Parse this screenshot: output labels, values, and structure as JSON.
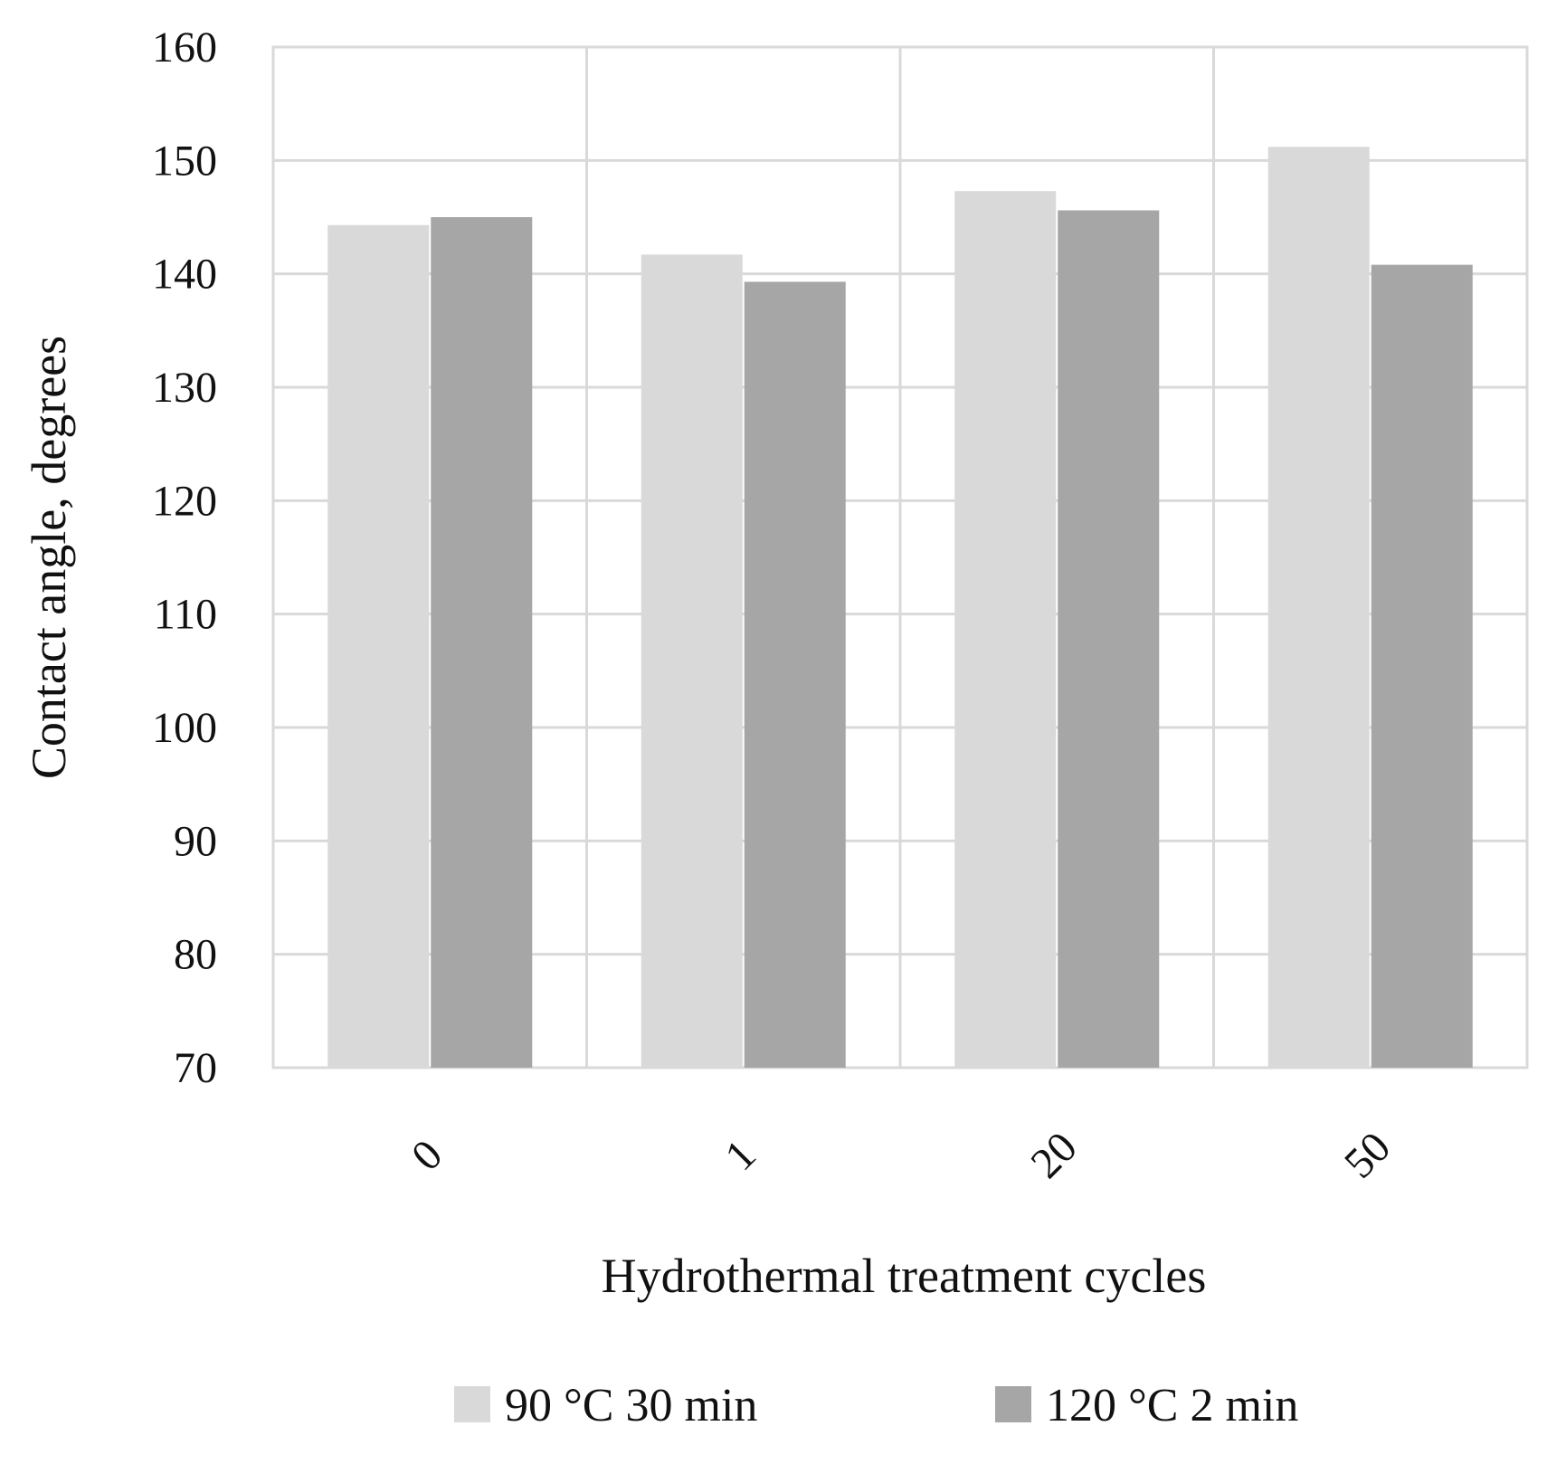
{
  "chart_data": {
    "type": "bar",
    "title": "",
    "xlabel": "Hydrothermal treatment cycles",
    "ylabel": "Contact angle, degrees",
    "categories": [
      "0",
      "1",
      "20",
      "50"
    ],
    "series": [
      {
        "name": "90 °C 30 min",
        "values": [
          144.3,
          141.7,
          147.3,
          151.2
        ],
        "color": "#d9d9d9"
      },
      {
        "name": "120 °C 2 min",
        "values": [
          145.0,
          139.3,
          145.6,
          140.8
        ],
        "color": "#a6a6a6"
      }
    ],
    "ylim": [
      70,
      160
    ],
    "yticks": [
      70,
      80,
      90,
      100,
      110,
      120,
      130,
      140,
      150,
      160
    ],
    "grid": true,
    "legend_position": "bottom"
  }
}
